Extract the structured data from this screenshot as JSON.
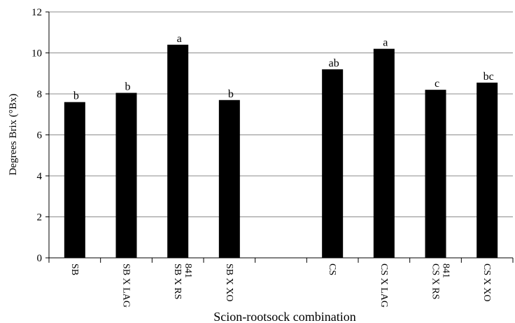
{
  "chart_data": {
    "type": "bar",
    "xlabel": "Scion-rootsock combination",
    "ylabel": "Degrees Brix (°Bx)",
    "ylim": [
      0,
      12
    ],
    "yticks": [
      0,
      2,
      4,
      6,
      8,
      10,
      12
    ],
    "grid": true,
    "bar_color": "#000000",
    "categories": [
      [
        "SB"
      ],
      [
        "SB X LAG"
      ],
      [
        "SB X RS",
        "841"
      ],
      [
        "SB X XO"
      ],
      [
        ""
      ],
      [
        "CS"
      ],
      [
        "CS X LAG"
      ],
      [
        "CS  X RS",
        "841"
      ],
      [
        "CS X XO"
      ]
    ],
    "values": [
      7.6,
      8.05,
      10.4,
      7.7,
      null,
      9.2,
      10.2,
      8.2,
      8.55
    ],
    "letters": [
      "b",
      "b",
      "a",
      "b",
      "",
      "ab",
      "a",
      "c",
      "bc"
    ]
  }
}
